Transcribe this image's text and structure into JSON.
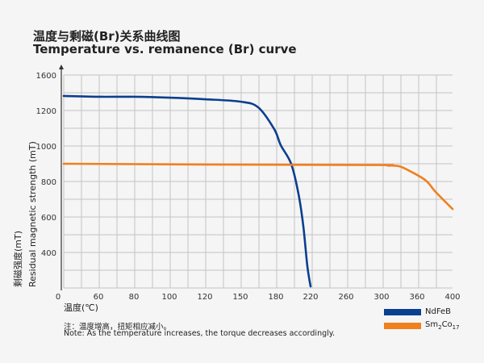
{
  "title_cn": "温度与剩磁(Br)关系曲线图",
  "title_en": "Temperature vs. remanence (Br) curve",
  "chart_data": {
    "type": "line",
    "title": "Temperature vs. remanence (Br) curve",
    "xlabel": "温度(℃)",
    "ylabel_cn": "剩磁强度(mT)",
    "ylabel_en": "Residual magnetic strength (mT)",
    "x_ticks": [
      0,
      60,
      80,
      100,
      120,
      150,
      180,
      220,
      260,
      300,
      360,
      400
    ],
    "y_ticks": [
      0,
      400,
      600,
      800,
      1000,
      1200,
      1600
    ],
    "xlim": [
      0,
      400
    ],
    "ylim": [
      0,
      1600
    ],
    "grid": true,
    "legend_position": "bottom-right",
    "series": [
      {
        "name": "NdFeB",
        "color": "#0b3f8f",
        "x": [
          0,
          60,
          80,
          100,
          120,
          150,
          165,
          178.6,
          185.6,
          197.6,
          206,
          211.6,
          216.3,
          220
        ],
        "y": [
          1364,
          1355,
          1355,
          1345,
          1327,
          1300,
          1236,
          1095,
          1005,
          900,
          732,
          550,
          245,
          18
        ]
      },
      {
        "name": "Sm2Co17",
        "color": "#f07f1e",
        "x": [
          0,
          150,
          300,
          310,
          330,
          350,
          370,
          381,
          400
        ],
        "y": [
          900,
          895,
          893,
          890,
          886,
          855,
          805,
          741,
          645
        ]
      }
    ]
  },
  "legend": [
    {
      "label": "NdFeB",
      "color": "#0b3f8f"
    },
    {
      "label_base": "Sm",
      "sub1": "2",
      "mid": "Co",
      "sub2": "17",
      "color": "#f07f1e"
    }
  ],
  "note_cn": "注：温度增高，扭矩相应减小。",
  "note_en": "Note: As the temperature increases, the torque decreases accordingly."
}
